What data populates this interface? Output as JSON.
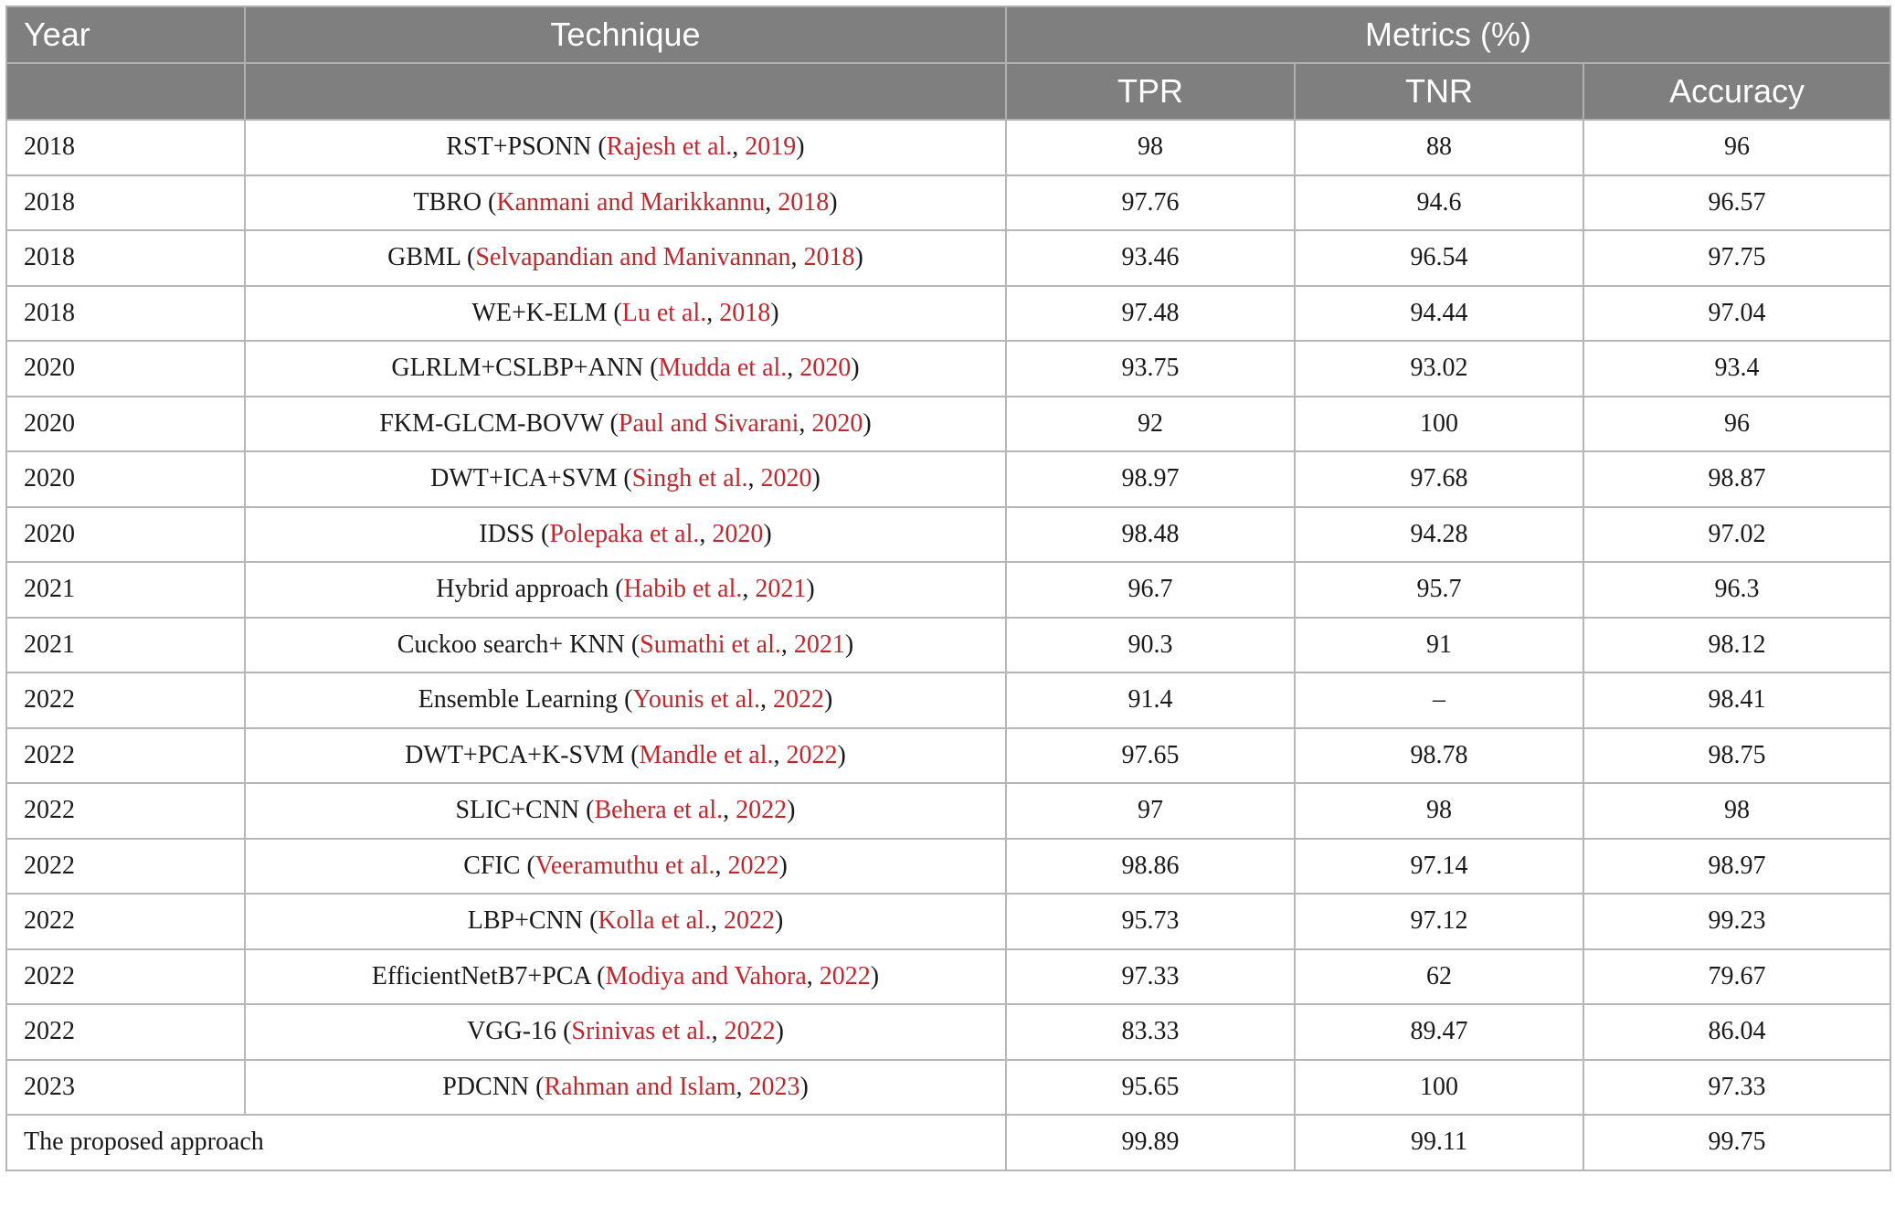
{
  "header": {
    "year": "Year",
    "technique": "Technique",
    "metrics": "Metrics (%)",
    "tpr": "TPR",
    "tnr": "TNR",
    "accuracy": "Accuracy"
  },
  "rows": [
    {
      "year": "2018",
      "name": "RST+PSONN",
      "authors": "Rajesh et al.",
      "cite_year": "2019",
      "tpr": "98",
      "tnr": "88",
      "acc": "96"
    },
    {
      "year": "2018",
      "name": "TBRO",
      "authors": "Kanmani and Marikkannu",
      "cite_year": "2018",
      "tpr": "97.76",
      "tnr": "94.6",
      "acc": "96.57"
    },
    {
      "year": "2018",
      "name": "GBML",
      "authors": "Selvapandian and Manivannan",
      "cite_year": "2018",
      "tpr": "93.46",
      "tnr": "96.54",
      "acc": "97.75"
    },
    {
      "year": "2018",
      "name": "WE+K-ELM",
      "authors": "Lu et al.",
      "cite_year": "2018",
      "tpr": "97.48",
      "tnr": "94.44",
      "acc": "97.04"
    },
    {
      "year": "2020",
      "name": "GLRLM+CSLBP+ANN",
      "authors": "Mudda et al.",
      "cite_year": "2020",
      "tpr": "93.75",
      "tnr": "93.02",
      "acc": "93.4"
    },
    {
      "year": "2020",
      "name": "FKM-GLCM-BOVW",
      "authors": "Paul and Sivarani",
      "cite_year": "2020",
      "tpr": "92",
      "tnr": "100",
      "acc": "96"
    },
    {
      "year": "2020",
      "name": "DWT+ICA+SVM",
      "authors": "Singh et al.",
      "cite_year": "2020",
      "tpr": "98.97",
      "tnr": "97.68",
      "acc": "98.87"
    },
    {
      "year": "2020",
      "name": "IDSS",
      "authors": "Polepaka et al.",
      "cite_year": "2020",
      "tpr": "98.48",
      "tnr": "94.28",
      "acc": "97.02"
    },
    {
      "year": "2021",
      "name": "Hybrid approach",
      "authors": "Habib et al.",
      "cite_year": "2021",
      "tpr": "96.7",
      "tnr": "95.7",
      "acc": "96.3"
    },
    {
      "year": "2021",
      "name": "Cuckoo search+ KNN",
      "authors": "Sumathi et al.",
      "cite_year": "2021",
      "tpr": "90.3",
      "tnr": "91",
      "acc": "98.12"
    },
    {
      "year": "2022",
      "name": "Ensemble Learning",
      "authors": "Younis et al.",
      "cite_year": "2022",
      "tpr": "91.4",
      "tnr": "–",
      "acc": "98.41"
    },
    {
      "year": "2022",
      "name": "DWT+PCA+K-SVM",
      "authors": "Mandle et al.",
      "cite_year": "2022",
      "tpr": "97.65",
      "tnr": "98.78",
      "acc": "98.75"
    },
    {
      "year": "2022",
      "name": "SLIC+CNN",
      "authors": "Behera et al.",
      "cite_year": "2022",
      "tpr": "97",
      "tnr": "98",
      "acc": "98"
    },
    {
      "year": "2022",
      "name": "CFIC",
      "authors": "Veeramuthu et al.",
      "cite_year": "2022",
      "tpr": "98.86",
      "tnr": "97.14",
      "acc": "98.97"
    },
    {
      "year": "2022",
      "name": "LBP+CNN",
      "authors": "Kolla et al.",
      "cite_year": "2022",
      "tpr": "95.73",
      "tnr": "97.12",
      "acc": "99.23"
    },
    {
      "year": "2022",
      "name": "EfficientNetB7+PCA",
      "authors": "Modiya and Vahora",
      "cite_year": "2022",
      "tpr": "97.33",
      "tnr": "62",
      "acc": "79.67"
    },
    {
      "year": "2022",
      "name": "VGG-16",
      "authors": "Srinivas et al.",
      "cite_year": "2022",
      "tpr": "83.33",
      "tnr": "89.47",
      "acc": "86.04"
    },
    {
      "year": "2023",
      "name": "PDCNN",
      "authors": "Rahman and Islam",
      "cite_year": "2023",
      "tpr": "95.65",
      "tnr": "100",
      "acc": "97.33"
    }
  ],
  "proposed": {
    "label": "The proposed approach",
    "tpr": "99.89",
    "tnr": "99.11",
    "acc": "99.75"
  }
}
